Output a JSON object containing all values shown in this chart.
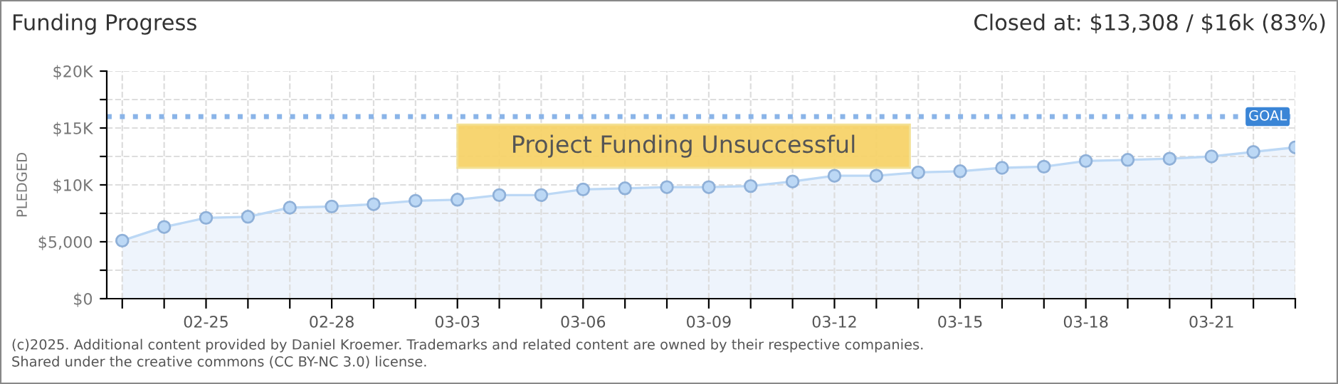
{
  "chart_data": {
    "type": "area",
    "title": "Funding Progress",
    "subtitle": "Closed at: $13,308 / $16k (83%)",
    "ylabel": "PLEDGED",
    "categories": [
      null,
      null,
      "02-25",
      null,
      null,
      "02-28",
      null,
      null,
      "03-03",
      null,
      null,
      "03-06",
      null,
      null,
      "03-09",
      null,
      null,
      "03-12",
      null,
      null,
      "03-15",
      null,
      null,
      "03-18",
      null,
      null,
      "03-21",
      null,
      null
    ],
    "series": [
      {
        "color": "#bcd8f5",
        "values": [
          5100,
          6300,
          7100,
          7200,
          8000,
          8100,
          8300,
          8600,
          8700,
          9100,
          9100,
          9600,
          9700,
          9800,
          9800,
          9900,
          10300,
          10800,
          10800,
          11100,
          11200,
          11500,
          11600,
          12100,
          12200,
          12300,
          12500,
          12900,
          13300
        ]
      }
    ],
    "ylim": [
      0,
      20000
    ],
    "yticks": [
      {
        "value": 0,
        "label": "$0"
      },
      {
        "value": 2500,
        "label": null
      },
      {
        "value": 5000,
        "label": "$5,000"
      },
      {
        "value": 7500,
        "label": null
      },
      {
        "value": 10000,
        "label": "$10K"
      },
      {
        "value": 12500,
        "label": null
      },
      {
        "value": 15000,
        "label": "$15K"
      },
      {
        "value": 17500,
        "label": null
      },
      {
        "value": 20000,
        "label": "$20K"
      }
    ],
    "ref_lines": [
      {
        "axis": "y",
        "value": 16000,
        "label": "GOAL",
        "color": "#8ab4e8",
        "line_style": "dotted"
      }
    ],
    "annotations": [
      "Project Funding Unsuccessful",
      "(c)2025. Additional content provided by Daniel Kroemer. Trademarks and related content are owned by their respective companies.",
      "Shared under the creative commons (CC BY-NC 3.0) license."
    ],
    "grid": true,
    "marker": "circle",
    "legend": false
  }
}
